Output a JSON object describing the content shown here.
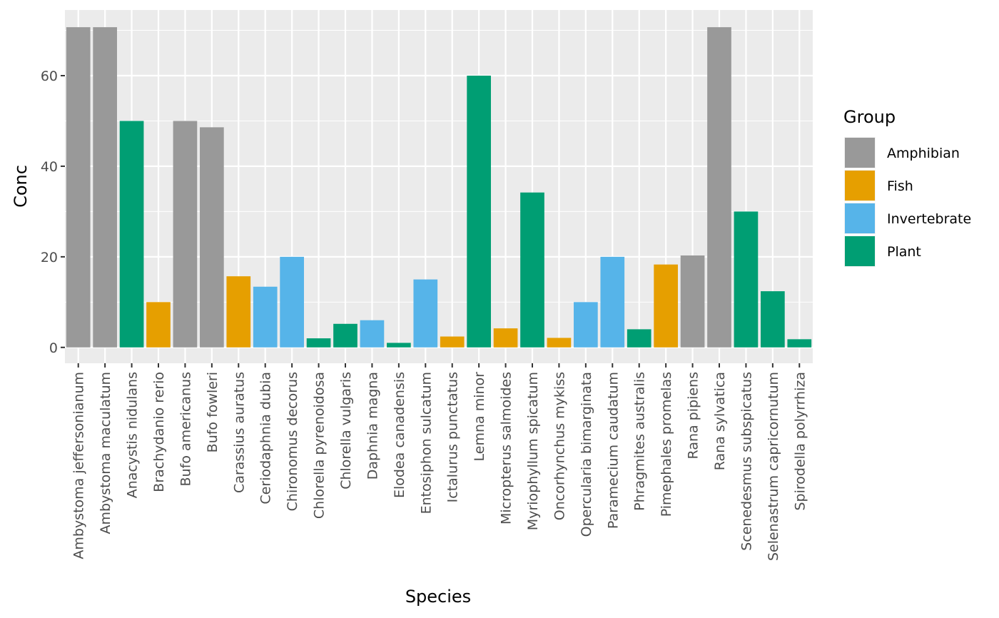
{
  "chart_data": {
    "type": "bar",
    "title": "",
    "xlabel": "Species",
    "ylabel": "Conc",
    "ylim": [
      -3.5,
      74.5
    ],
    "yticks": [
      0,
      20,
      40,
      60
    ],
    "grid": true,
    "legend_position": "right",
    "legend_title": "Group",
    "groups": [
      {
        "name": "Amphibian",
        "color": "#999999"
      },
      {
        "name": "Fish",
        "color": "#E69F00"
      },
      {
        "name": "Invertebrate",
        "color": "#56B4E9"
      },
      {
        "name": "Plant",
        "color": "#009E73"
      }
    ],
    "categories": [
      "Ambystoma jeffersonianum",
      "Ambystoma maculatum",
      "Anacystis nidulans",
      "Brachydanio rerio",
      "Bufo americanus",
      "Bufo fowleri",
      "Carassius auratus",
      "Ceriodaphnia dubia",
      "Chironomus decorus",
      "Chlorella pyrenoidosa",
      "Chlorella vulgaris",
      "Daphnia magna",
      "Elodea canadensis",
      "Entosiphon sulcatum",
      "Ictalurus punctatus",
      "Lemna minor",
      "Micropterus salmoides",
      "Myriophyllum spicatum",
      "Oncorhynchus mykiss",
      "Opercularia bimarginata",
      "Paramecium caudatum",
      "Phragmites australis",
      "Pimephales promelas",
      "Rana pipiens",
      "Rana sylvatica",
      "Scenedesmus subspicatus",
      "Selenastrum capricornutum",
      "Spirodella polyrrhiza"
    ],
    "values": [
      70.7,
      70.7,
      50,
      10,
      50,
      48.6,
      15.7,
      13.4,
      20,
      2,
      5.2,
      6,
      1,
      15,
      2.4,
      60,
      4.2,
      34.2,
      2.1,
      10,
      20,
      4,
      18.3,
      20.3,
      70.7,
      30,
      12.4,
      1.8
    ],
    "group_of_bar": [
      "Amphibian",
      "Amphibian",
      "Plant",
      "Fish",
      "Amphibian",
      "Amphibian",
      "Fish",
      "Invertebrate",
      "Invertebrate",
      "Plant",
      "Plant",
      "Invertebrate",
      "Plant",
      "Invertebrate",
      "Fish",
      "Plant",
      "Fish",
      "Plant",
      "Fish",
      "Invertebrate",
      "Invertebrate",
      "Plant",
      "Fish",
      "Amphibian",
      "Amphibian",
      "Plant",
      "Plant",
      "Plant"
    ]
  }
}
